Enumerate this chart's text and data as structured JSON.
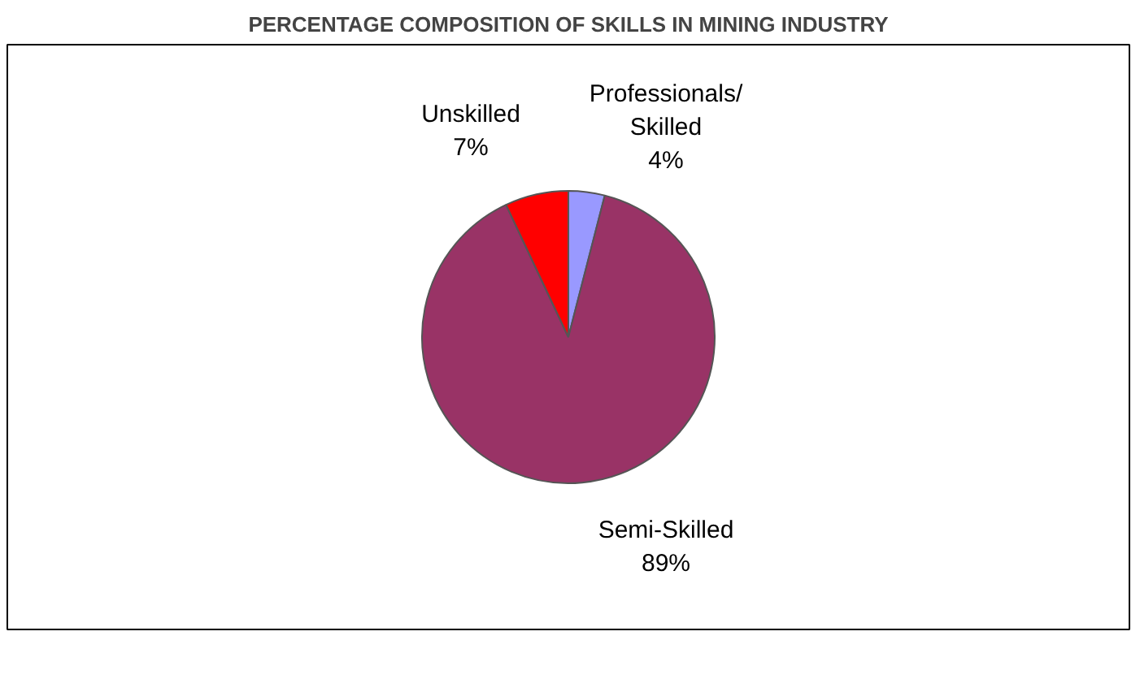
{
  "chart_data": {
    "type": "pie",
    "title": "PERCENTAGE COMPOSITION OF SKILLS IN MINING INDUSTRY",
    "categories": [
      "Professionals/ Skilled",
      "Semi-Skilled",
      "Unskilled"
    ],
    "values": [
      4,
      89,
      7
    ],
    "colors": [
      "#9999ff",
      "#993366",
      "#ff0000"
    ],
    "value_labels": [
      "4%",
      "89%",
      "7%"
    ]
  }
}
